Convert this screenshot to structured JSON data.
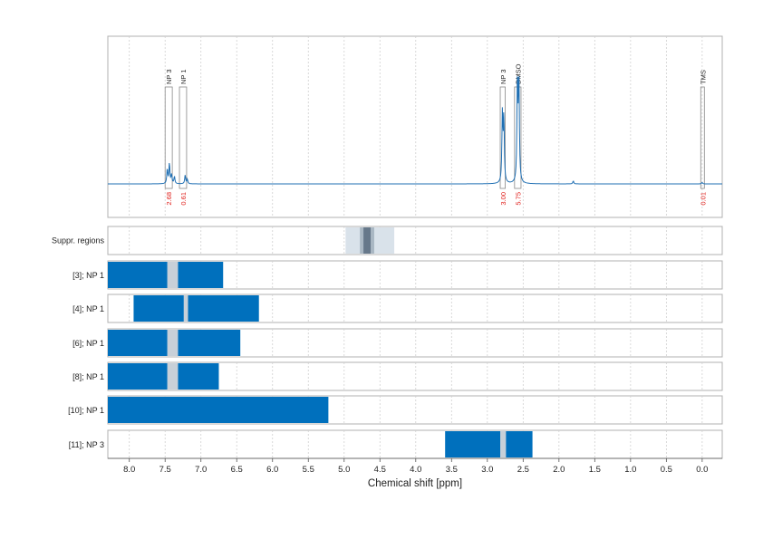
{
  "chart_data": {
    "type": "line",
    "x_range": [
      8.3,
      -0.28
    ],
    "xlabel": "Chemical shift [ppm]",
    "x_ticks": [
      "8.0",
      "7.5",
      "7.0",
      "6.5",
      "6.0",
      "5.5",
      "5.0",
      "4.5",
      "4.0",
      "3.5",
      "3.0",
      "2.5",
      "2.0",
      "1.5",
      "1.0",
      "0.5",
      "0.0"
    ],
    "line_color": "#1f6fb3",
    "bar_color": "#0070bd",
    "gap_color": "#c8d0d8",
    "spectrum": {
      "baseline": 0.0,
      "peaks": [
        {
          "x": 7.47,
          "y": 0.1
        },
        {
          "x": 7.44,
          "y": 0.14
        },
        {
          "x": 7.41,
          "y": 0.06
        },
        {
          "x": 7.37,
          "y": 0.05
        },
        {
          "x": 7.22,
          "y": 0.06
        },
        {
          "x": 7.19,
          "y": 0.03
        },
        {
          "x": 2.79,
          "y": 0.47
        },
        {
          "x": 2.77,
          "y": 0.44
        },
        {
          "x": 2.58,
          "y": 0.7
        },
        {
          "x": 2.56,
          "y": 0.72
        },
        {
          "x": 1.8,
          "y": 0.02
        },
        {
          "x": 0.0,
          "y": 0.01
        }
      ]
    },
    "annotations": [
      {
        "label": "NP 3",
        "ppm_from": 7.5,
        "ppm_to": 7.4,
        "integral": "2.68"
      },
      {
        "label": "NP 1",
        "ppm_from": 7.3,
        "ppm_to": 7.2,
        "integral": "0.61"
      },
      {
        "label": "NP 3",
        "ppm_from": 2.82,
        "ppm_to": 2.75,
        "integral": "3.00"
      },
      {
        "label": "DMSO",
        "ppm_from": 2.62,
        "ppm_to": 2.53,
        "integral": "5.75"
      },
      {
        "label": "TMS",
        "ppm_from": 0.02,
        "ppm_to": -0.02,
        "integral": "0.01"
      }
    ],
    "suppression": {
      "label": "Suppr. regions",
      "outer": [
        4.98,
        4.3
      ],
      "mid": [
        4.78,
        4.58
      ],
      "inner": [
        4.73,
        4.63
      ]
    },
    "rows": [
      {
        "label": "[3]; NP 1",
        "segments": [
          [
            8.3,
            7.47
          ],
          [
            7.32,
            6.69
          ]
        ]
      },
      {
        "label": "[4]; NP 1",
        "segments": [
          [
            7.94,
            7.24
          ],
          [
            7.18,
            6.19
          ]
        ]
      },
      {
        "label": "[6]; NP 1",
        "segments": [
          [
            8.3,
            7.47
          ],
          [
            7.32,
            6.45
          ]
        ]
      },
      {
        "label": "[8]; NP 1",
        "segments": [
          [
            8.3,
            7.47
          ],
          [
            7.32,
            6.75
          ]
        ]
      },
      {
        "label": "[10]; NP 1",
        "segments": [
          [
            8.3,
            5.22
          ]
        ]
      },
      {
        "label": "[11]; NP 3",
        "segments": [
          [
            3.59,
            2.82
          ],
          [
            2.74,
            2.37
          ]
        ]
      }
    ]
  }
}
